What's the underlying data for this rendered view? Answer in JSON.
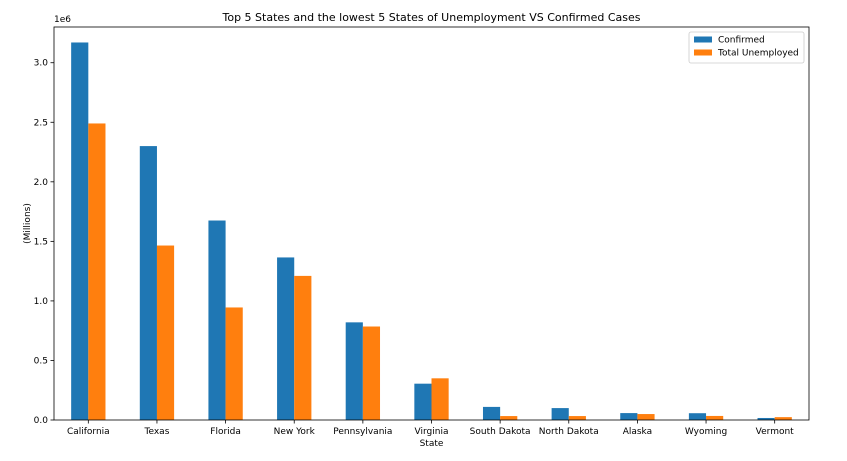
{
  "chart_data": {
    "type": "bar",
    "title": "Top 5 States and the lowest 5 States of Unemployment VS Confirmed Cases",
    "xlabel": "State",
    "ylabel": "(Millions)",
    "offset_text": "1e6",
    "categories": [
      "California",
      "Texas",
      "Florida",
      "New York",
      "Pennsylvania",
      "Virginia",
      "South Dakota",
      "North Dakota",
      "Alaska",
      "Wyoming",
      "Vermont"
    ],
    "series": [
      {
        "name": "Confirmed",
        "color": "#1f77b4",
        "values": [
          3170000,
          2300000,
          1675000,
          1365000,
          820000,
          305000,
          110000,
          100000,
          58000,
          57000,
          17000
        ]
      },
      {
        "name": "Total Unemployed",
        "color": "#ff7f0e",
        "values": [
          2490000,
          1465000,
          945000,
          1210000,
          785000,
          350000,
          33000,
          33000,
          50000,
          34000,
          24000
        ]
      }
    ],
    "ylim": [
      0,
      3300000
    ],
    "yticks": [
      0,
      500000,
      1000000,
      1500000,
      2000000,
      2500000,
      3000000
    ],
    "ytick_labels": [
      "0.0",
      "0.5",
      "1.0",
      "1.5",
      "2.0",
      "2.5",
      "3.0"
    ],
    "legend_position": "top-right",
    "grid": false
  }
}
